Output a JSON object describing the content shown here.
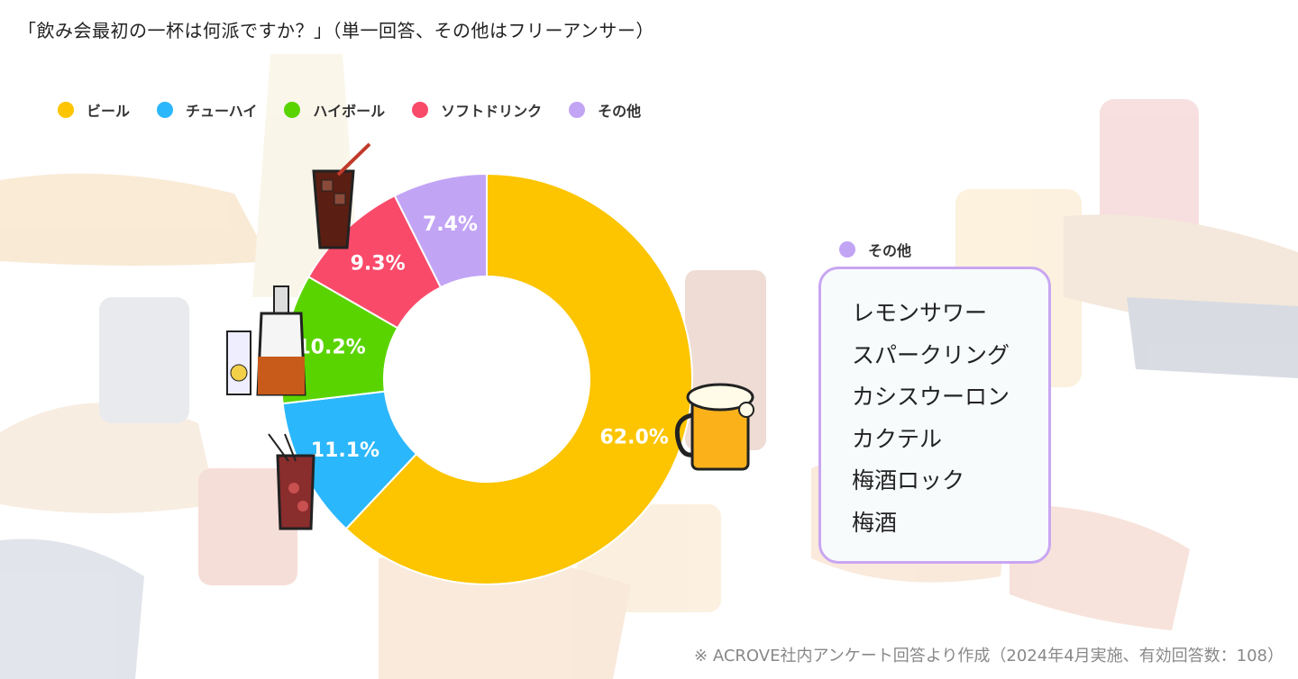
{
  "title": "「飲み会最初の一杯は何派ですか？」（単一回答、その他はフリーアンサー）",
  "legend": [
    {
      "label": "ビール",
      "color": "#fcc500"
    },
    {
      "label": "チューハイ",
      "color": "#2bb7fb"
    },
    {
      "label": "ハイボール",
      "color": "#5ad400"
    },
    {
      "label": "ソフトドリンク",
      "color": "#fa4a6a"
    },
    {
      "label": "その他",
      "color": "#c2a4f5"
    }
  ],
  "chart_data": {
    "type": "pie",
    "categories": [
      "ビール",
      "チューハイ",
      "ハイボール",
      "ソフトドリンク",
      "その他"
    ],
    "values": [
      62.0,
      11.1,
      10.2,
      9.3,
      7.4
    ],
    "labels": [
      "62.0%",
      "11.1%",
      "10.2%",
      "9.3%",
      "7.4%"
    ],
    "colors": [
      "#fcc500",
      "#2bb7fb",
      "#5ad400",
      "#fa4a6a",
      "#c2a4f5"
    ],
    "legend_placement": "top-left"
  },
  "other": {
    "legend_label": "その他",
    "color": "#c2a4f5",
    "items": [
      "レモンサワー",
      "スパークリング",
      "カシスウーロン",
      "カクテル",
      "梅酒ロック",
      "梅酒"
    ]
  },
  "footnote": "※ ACROVE社内アンケート回答より作成（2024年4月実施、有効回答数：108）"
}
